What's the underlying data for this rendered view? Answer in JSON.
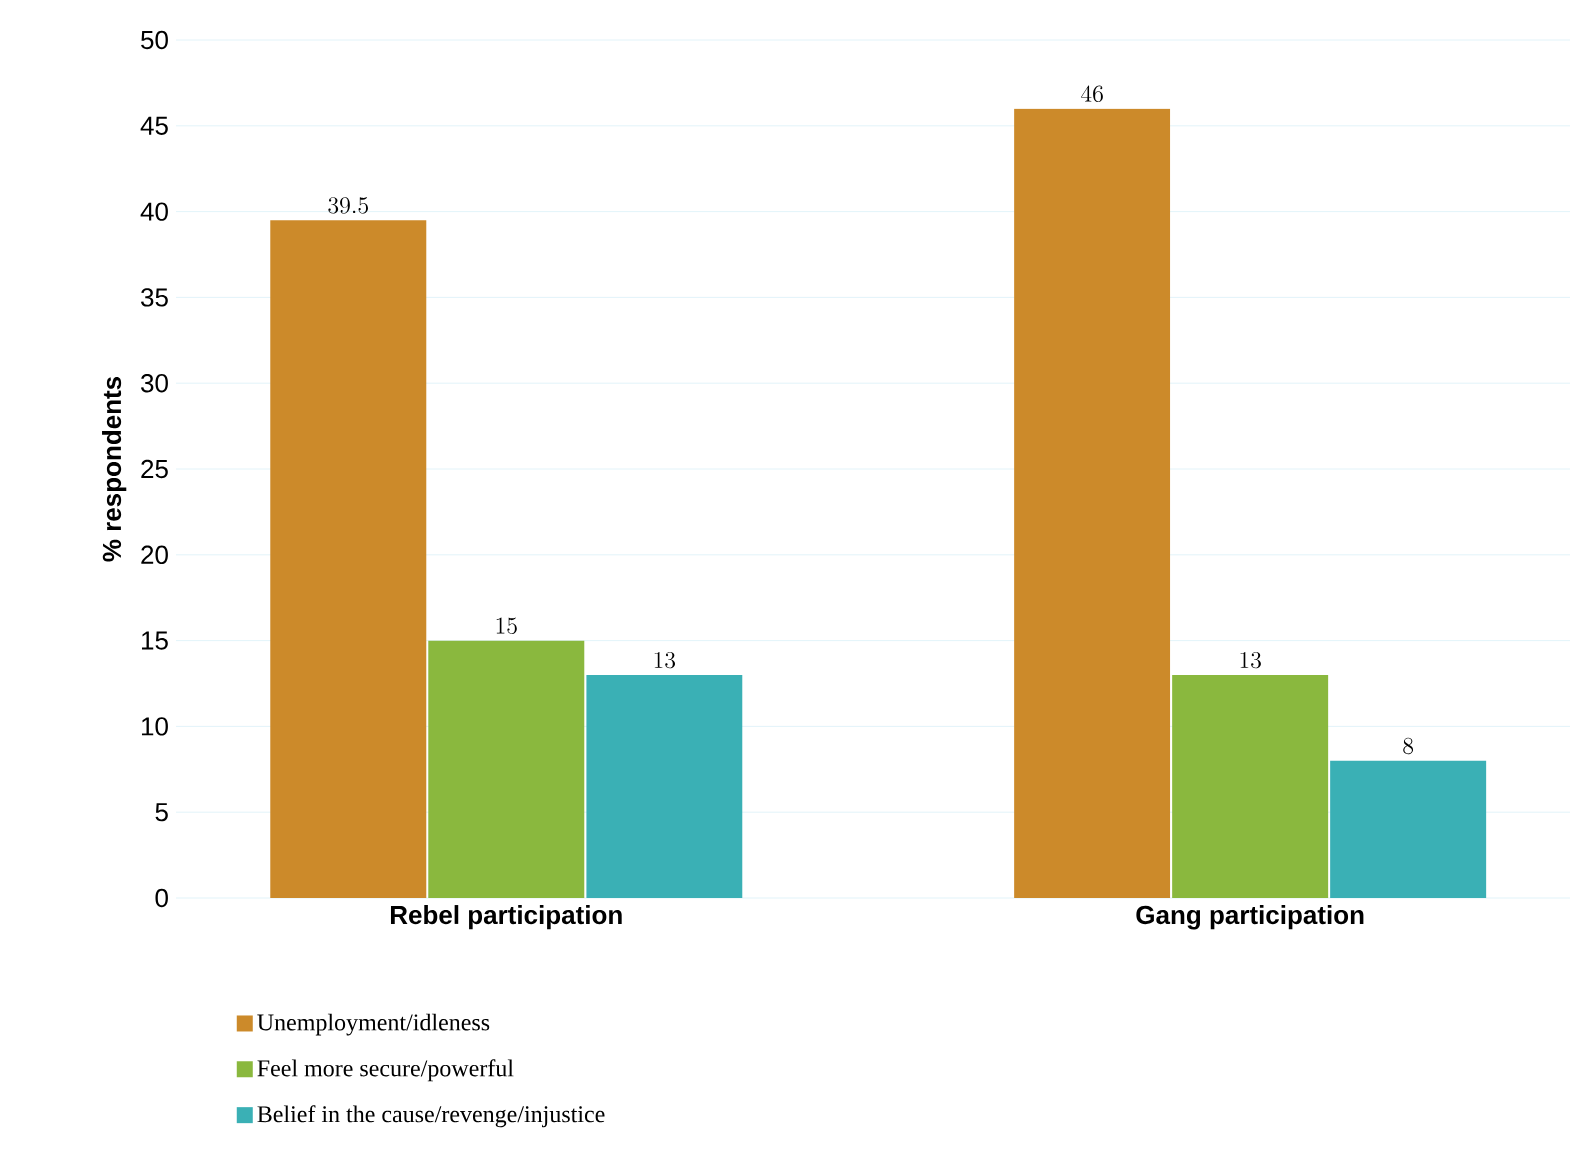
{
  "chart_data": {
    "type": "bar",
    "ylabel": "% respondents",
    "categories": [
      "Rebel participation",
      "Gang participation"
    ],
    "series": [
      {
        "name": "Unemployment/idleness",
        "color": "#cc8a2a",
        "values": [
          39.5,
          46
        ]
      },
      {
        "name": "Feel more secure/powerful",
        "color": "#8ab83e",
        "values": [
          15,
          13
        ]
      },
      {
        "name": "Belief in the cause/revenge/injustice",
        "color": "#3ab0b5",
        "values": [
          13,
          8
        ]
      }
    ],
    "ylim": [
      0,
      50
    ],
    "yticks": [
      0,
      5,
      10,
      15,
      20,
      25,
      30,
      35,
      40,
      45,
      50
    ],
    "grid": "y",
    "legend": "bottom left",
    "data_labels": true
  }
}
